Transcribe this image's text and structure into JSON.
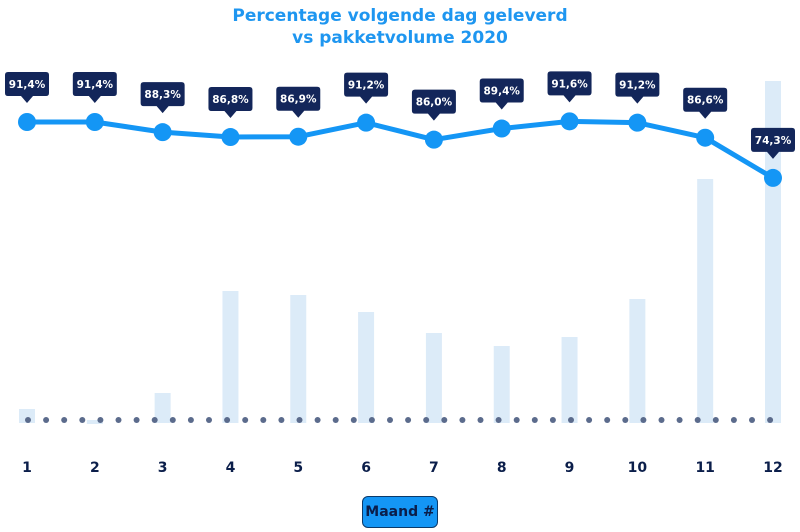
{
  "chart_data": {
    "type": "line+bar",
    "title": "Percentage volgende dag geleverd",
    "subtitle": "vs pakketvolume 2020",
    "xlabel": "Maand #",
    "categories": [
      "1",
      "2",
      "3",
      "4",
      "5",
      "6",
      "7",
      "8",
      "9",
      "10",
      "11",
      "12"
    ],
    "series": [
      {
        "type": "line",
        "values": [
          91.4,
          91.4,
          88.3,
          86.8,
          86.9,
          91.2,
          86.0,
          89.4,
          91.6,
          91.2,
          86.6,
          74.3
        ],
        "labels": [
          "91,4%",
          "91,4%",
          "88,3%",
          "86,8%",
          "86,9%",
          "91,2%",
          "86,0%",
          "89,4%",
          "91,6%",
          "91,2%",
          "86,6%",
          "74,3%"
        ]
      },
      {
        "type": "bar",
        "values": [
          11,
          -3,
          27,
          129,
          125,
          108,
          87,
          74,
          83,
          121,
          241,
          339
        ]
      }
    ],
    "grid": false,
    "colors": {
      "line": "#1496f5",
      "bar": "#dcebf8",
      "label_bg": "#13265a",
      "baseline_dots": "#5b6b8c",
      "title": "#1e96f0",
      "tick": "#0b1e4a"
    }
  }
}
